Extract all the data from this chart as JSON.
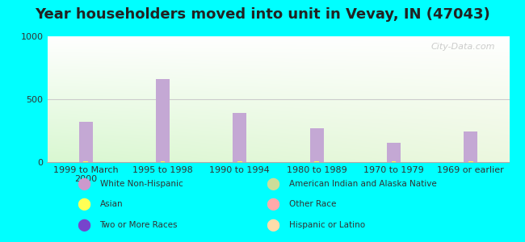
{
  "title": "Year householders moved into unit in Vevay, IN (47043)",
  "background_color": "#00FFFF",
  "categories": [
    "1999 to March\n2000",
    "1995 to 1998",
    "1990 to 1994",
    "1980 to 1989",
    "1970 to 1979",
    "1969 or earlier"
  ],
  "white_non_hispanic": [
    320,
    660,
    390,
    270,
    155,
    245
  ],
  "asian": [
    8,
    8,
    8,
    8,
    8,
    8
  ],
  "ylim": [
    0,
    1000
  ],
  "yticks": [
    0,
    500,
    1000
  ],
  "bar_color_white": "#c4a8d4",
  "bar_color_asian": "#ffff55",
  "legend_items": [
    {
      "label": "White Non-Hispanic",
      "color": "#cc99cc"
    },
    {
      "label": "Asian",
      "color": "#ffff55"
    },
    {
      "label": "Two or More Races",
      "color": "#7744cc"
    },
    {
      "label": "American Indian and Alaska Native",
      "color": "#ccdd99"
    },
    {
      "label": "Other Race",
      "color": "#ffaaaa"
    },
    {
      "label": "Hispanic or Latino",
      "color": "#ffddaa"
    }
  ],
  "watermark": "City-Data.com",
  "title_fontsize": 13,
  "tick_fontsize": 8
}
